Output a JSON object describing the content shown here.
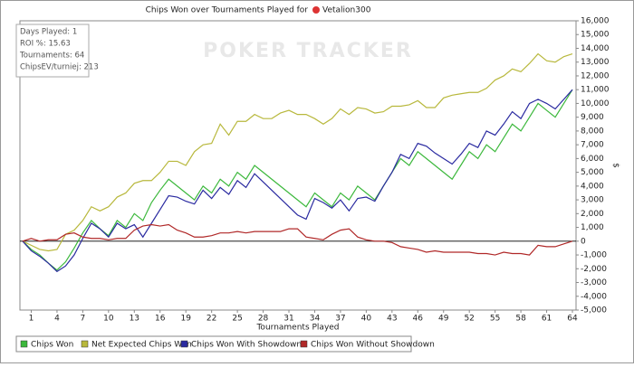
{
  "chart_data": {
    "type": "line",
    "title": "Chips Won over Tournaments Played for",
    "player": "Vetalion300",
    "watermark": "POKER TRACKER",
    "info": [
      "Days Played: 1",
      "ROI %: 15.63",
      "Tournaments: 64",
      "ChipsEV/turniej: 213"
    ],
    "x_label": "Tournaments Played",
    "y_label": "$",
    "x": [
      0,
      1,
      2,
      3,
      4,
      5,
      6,
      7,
      8,
      9,
      10,
      11,
      12,
      13,
      14,
      15,
      16,
      17,
      18,
      19,
      20,
      21,
      22,
      23,
      24,
      25,
      26,
      27,
      28,
      29,
      30,
      31,
      32,
      33,
      34,
      35,
      36,
      37,
      38,
      39,
      40,
      41,
      42,
      43,
      44,
      45,
      46,
      47,
      48,
      49,
      50,
      51,
      52,
      53,
      54,
      55,
      56,
      57,
      58,
      59,
      60,
      61,
      62,
      63,
      64
    ],
    "xlim": [
      0,
      64
    ],
    "xticks": [
      1,
      4,
      7,
      10,
      13,
      16,
      19,
      22,
      25,
      28,
      31,
      34,
      37,
      40,
      43,
      46,
      49,
      52,
      55,
      58,
      61,
      64
    ],
    "ylim": [
      -5000,
      16000
    ],
    "yticks": [
      {
        "value": -5000,
        "label": "-5,000"
      },
      {
        "value": -4000,
        "label": "-4,000"
      },
      {
        "value": -3000,
        "label": "-3,000"
      },
      {
        "value": -2000,
        "label": "-2,000"
      },
      {
        "value": -1000,
        "label": "-1,000"
      },
      0,
      {
        "value": 1000,
        "label": "1,000"
      },
      {
        "value": 2000,
        "label": "2,000"
      },
      {
        "value": 3000,
        "label": "3,000"
      },
      {
        "value": 4000,
        "label": "4,000"
      },
      {
        "value": 5000,
        "label": "5,000"
      },
      {
        "value": 6000,
        "label": "6,000"
      },
      {
        "value": 7000,
        "label": "7,000"
      },
      {
        "value": 8000,
        "label": "8,000"
      },
      {
        "value": 9000,
        "label": "9,000"
      },
      {
        "value": 10000,
        "label": "10,000"
      },
      {
        "value": 11000,
        "label": "11,000"
      },
      {
        "value": 12000,
        "label": "12,000"
      },
      {
        "value": 13000,
        "label": "13,000"
      },
      {
        "value": 14000,
        "label": "14,000"
      },
      {
        "value": 15000,
        "label": "15,000"
      },
      {
        "value": 16000,
        "label": "16,000"
      }
    ],
    "series": [
      {
        "name": "Chips Won",
        "color": "#3cb83c",
        "values": [
          0,
          -600,
          -1000,
          -1600,
          -2100,
          -1500,
          -500,
          600,
          1500,
          900,
          400,
          1500,
          1000,
          2000,
          1500,
          2800,
          3700,
          4500,
          4000,
          3500,
          3000,
          4000,
          3500,
          4500,
          4000,
          5000,
          4500,
          5500,
          5000,
          4500,
          4000,
          3500,
          3000,
          2500,
          3500,
          3000,
          2500,
          3500,
          3000,
          4000,
          3500,
          3000,
          4000,
          5000,
          6000,
          5500,
          6500,
          6000,
          5500,
          5000,
          4500,
          5500,
          6500,
          6000,
          7000,
          6500,
          7500,
          8500,
          8000,
          9000,
          10000,
          9500,
          9000,
          10000,
          11000
        ]
      },
      {
        "name": "Net Expected Chips Won",
        "color": "#b8b83c",
        "values": [
          0,
          -300,
          -600,
          -700,
          -600,
          500,
          800,
          1500,
          2500,
          2200,
          2500,
          3200,
          3500,
          4200,
          4400,
          4400,
          5000,
          5800,
          5800,
          5500,
          6500,
          7000,
          7100,
          8500,
          7700,
          8700,
          8700,
          9200,
          8900,
          8900,
          9300,
          9500,
          9200,
          9200,
          8900,
          8500,
          8900,
          9600,
          9200,
          9700,
          9600,
          9300,
          9400,
          9800,
          9800,
          9900,
          10200,
          9700,
          9700,
          10400,
          10600,
          10700,
          10800,
          10800,
          11100,
          11700,
          12000,
          12500,
          12300,
          12900,
          13600,
          13100,
          13000,
          13400,
          13600
        ]
      },
      {
        "name": "Chips Won With Showdown",
        "color": "#2a2aa0",
        "values": [
          0,
          -700,
          -1100,
          -1600,
          -2200,
          -1800,
          -1000,
          200,
          1300,
          900,
          300,
          1300,
          900,
          1200,
          300,
          1300,
          2300,
          3300,
          3200,
          2900,
          2700,
          3700,
          3100,
          3900,
          3400,
          4400,
          3900,
          4900,
          4300,
          3700,
          3100,
          2500,
          1900,
          1600,
          3100,
          2800,
          2400,
          3000,
          2200,
          3100,
          3200,
          2900,
          4000,
          5000,
          6300,
          6000,
          7100,
          6900,
          6400,
          6000,
          5600,
          6300,
          7100,
          6800,
          8000,
          7700,
          8500,
          9400,
          8900,
          10000,
          10300,
          10000,
          9600,
          10300,
          11000
        ]
      },
      {
        "name": "Chips Won Without Showdown",
        "color": "#b02828",
        "values": [
          0,
          200,
          0,
          100,
          100,
          500,
          600,
          300,
          200,
          200,
          100,
          200,
          200,
          800,
          1100,
          1200,
          1100,
          1200,
          800,
          600,
          300,
          300,
          400,
          600,
          600,
          700,
          600,
          700,
          700,
          700,
          700,
          900,
          900,
          300,
          200,
          100,
          500,
          800,
          900,
          300,
          100,
          0,
          0,
          -100,
          -400,
          -500,
          -600,
          -800,
          -700,
          -800,
          -800,
          -800,
          -800,
          -900,
          -900,
          -1000,
          -800,
          -900,
          -900,
          -1000,
          -300,
          -400,
          -400,
          -200,
          0
        ]
      }
    ]
  }
}
